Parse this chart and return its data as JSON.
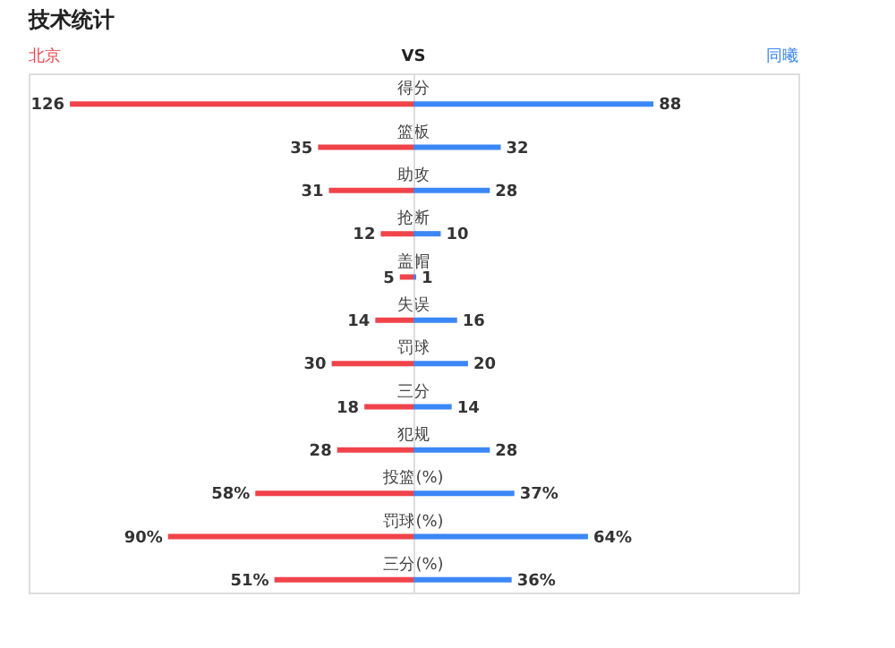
{
  "chart_data": [
    {
      "type": "bar",
      "orientation": "horizontal",
      "title": "技术统计",
      "annotations": [
        "VS"
      ],
      "legend": "top left",
      "categories": [
        "得分",
        "篮板",
        "助攻",
        "抢断",
        "盖帽",
        "失误",
        "罚球",
        "三分",
        "犯规",
        "投篮(%)",
        "罚球(%)",
        "三分(%)"
      ],
      "series": [
        {
          "name": "北京",
          "color": "#f0434a",
          "values": [
            126,
            35,
            31,
            12,
            5,
            14,
            30,
            18,
            28,
            58,
            90,
            51
          ],
          "value_labels": [
            "126",
            "35",
            "31",
            "12",
            "5",
            "14",
            "30",
            "18",
            "28",
            "58%",
            "90%",
            "51%"
          ]
        }
      ]
    },
    {
      "type": "bar",
      "orientation": "horizontal",
      "legend": "top right",
      "categories": [
        null,
        null,
        null,
        null,
        null,
        null,
        null,
        null,
        null,
        null,
        null,
        null
      ],
      "series": [
        {
          "name": "同曦",
          "color": "#3b87f5",
          "values": [
            88,
            32,
            28,
            10,
            1,
            16,
            20,
            14,
            28,
            37,
            64,
            36
          ],
          "value_labels": [
            "88",
            "32",
            "28",
            "10",
            "1",
            "16",
            "20",
            "14",
            "28",
            "37%",
            "64%",
            "36%"
          ]
        }
      ]
    }
  ]
}
